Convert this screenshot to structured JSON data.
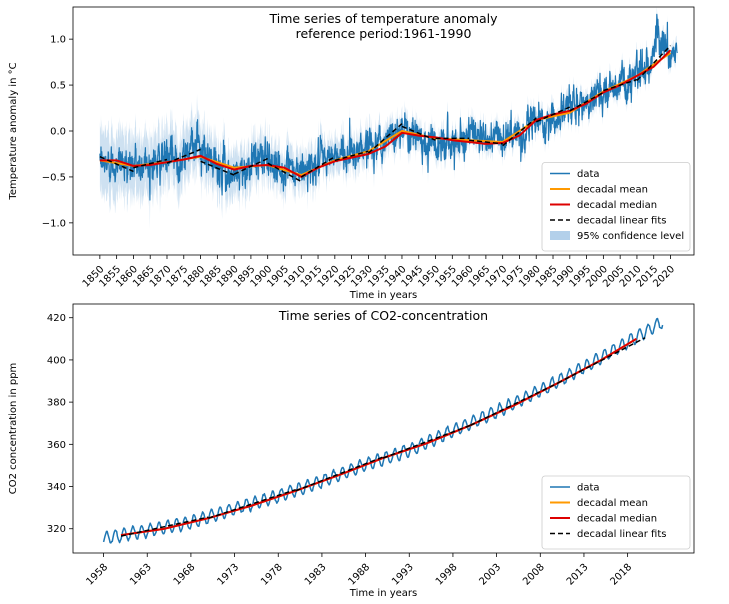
{
  "chart_data": [
    {
      "type": "line",
      "title": "Time series of temperature anomaly",
      "subtitle": "reference period:1961-1990",
      "xlabel": "Time in years",
      "ylabel": "Temperature anomaly in °C",
      "xlim": [
        1842,
        2027
      ],
      "ylim": [
        -1.35,
        1.35
      ],
      "xticks": [
        1850,
        1855,
        1860,
        1865,
        1870,
        1875,
        1880,
        1885,
        1890,
        1895,
        1900,
        1905,
        1910,
        1915,
        1920,
        1925,
        1930,
        1935,
        1940,
        1945,
        1950,
        1955,
        1960,
        1965,
        1970,
        1975,
        1980,
        1985,
        1990,
        1995,
        2000,
        2005,
        2010,
        2015,
        2020
      ],
      "yticks": [
        -1.0,
        -0.5,
        0.0,
        0.5,
        1.0
      ],
      "ytick_labels": [
        "−1.0",
        "−0.5",
        "0.0",
        "0.5",
        "1.0"
      ],
      "legend_position": "bottom-right",
      "legend": [
        "data",
        "decadal mean",
        "decadal median",
        "decadal linear fits",
        "95% confidence level"
      ],
      "series": [
        {
          "name": "data",
          "color": "#1f77b4",
          "style": "monthly series, anchor values",
          "x": [
            1850,
            1855,
            1860,
            1865,
            1870,
            1875,
            1878,
            1880,
            1885,
            1890,
            1895,
            1900,
            1905,
            1910,
            1915,
            1920,
            1925,
            1930,
            1935,
            1940,
            1945,
            1950,
            1955,
            1960,
            1965,
            1970,
            1975,
            1980,
            1985,
            1990,
            1995,
            2000,
            2005,
            2010,
            2015,
            2016,
            2020,
            2022
          ],
          "y": [
            -0.38,
            -0.33,
            -0.38,
            -0.35,
            -0.3,
            -0.3,
            -0.05,
            -0.25,
            -0.4,
            -0.47,
            -0.36,
            -0.27,
            -0.45,
            -0.45,
            -0.33,
            -0.28,
            -0.22,
            -0.16,
            -0.12,
            0.05,
            -0.05,
            -0.15,
            -0.1,
            -0.03,
            -0.1,
            -0.06,
            -0.05,
            0.12,
            0.1,
            0.28,
            0.3,
            0.42,
            0.5,
            0.62,
            0.8,
            1.1,
            0.85,
            0.82
          ]
        },
        {
          "name": "decadal mean",
          "color": "#ff9900",
          "x": [
            1850,
            1860,
            1870,
            1880,
            1890,
            1900,
            1910,
            1920,
            1930,
            1940,
            1950,
            1960,
            1970,
            1980,
            1990,
            2000,
            2010,
            2020
          ],
          "y": [
            -0.32,
            -0.38,
            -0.34,
            -0.28,
            -0.4,
            -0.37,
            -0.48,
            -0.32,
            -0.22,
            0.0,
            -0.08,
            -0.1,
            -0.12,
            0.12,
            0.2,
            0.43,
            0.6,
            0.85
          ]
        },
        {
          "name": "decadal median",
          "color": "#dd0000",
          "x": [
            1850,
            1855,
            1860,
            1865,
            1870,
            1875,
            1880,
            1885,
            1890,
            1895,
            1900,
            1905,
            1910,
            1915,
            1920,
            1925,
            1930,
            1935,
            1940,
            1945,
            1950,
            1955,
            1960,
            1965,
            1970,
            1975,
            1980,
            1985,
            1990,
            1995,
            2000,
            2005,
            2010,
            2015,
            2020
          ],
          "y": [
            -0.32,
            -0.32,
            -0.38,
            -0.37,
            -0.34,
            -0.31,
            -0.27,
            -0.36,
            -0.42,
            -0.38,
            -0.37,
            -0.4,
            -0.5,
            -0.4,
            -0.33,
            -0.29,
            -0.25,
            -0.17,
            -0.02,
            -0.05,
            -0.07,
            -0.1,
            -0.12,
            -0.14,
            -0.13,
            -0.05,
            0.12,
            0.18,
            0.22,
            0.3,
            0.42,
            0.5,
            0.6,
            0.7,
            0.88
          ]
        },
        {
          "name": "decadal linear fits",
          "color": "#000000",
          "style": "dashed",
          "segments": [
            {
              "x": [
                1850,
                1860
              ],
              "y": [
                -0.28,
                -0.44
              ]
            },
            {
              "x": [
                1860,
                1870
              ],
              "y": [
                -0.4,
                -0.31
              ]
            },
            {
              "x": [
                1870,
                1880
              ],
              "y": [
                -0.35,
                -0.2
              ]
            },
            {
              "x": [
                1880,
                1890
              ],
              "y": [
                -0.33,
                -0.48
              ]
            },
            {
              "x": [
                1890,
                1900
              ],
              "y": [
                -0.47,
                -0.3
              ]
            },
            {
              "x": [
                1900,
                1910
              ],
              "y": [
                -0.35,
                -0.55
              ]
            },
            {
              "x": [
                1910,
                1920
              ],
              "y": [
                -0.5,
                -0.28
              ]
            },
            {
              "x": [
                1920,
                1930
              ],
              "y": [
                -0.32,
                -0.22
              ]
            },
            {
              "x": [
                1930,
                1940
              ],
              "y": [
                -0.24,
                0.08
              ]
            },
            {
              "x": [
                1940,
                1950
              ],
              "y": [
                0.05,
                -0.1
              ]
            },
            {
              "x": [
                1950,
                1960
              ],
              "y": [
                -0.08,
                -0.08
              ]
            },
            {
              "x": [
                1960,
                1970
              ],
              "y": [
                -0.1,
                -0.14
              ]
            },
            {
              "x": [
                1970,
                1980
              ],
              "y": [
                -0.16,
                0.14
              ]
            },
            {
              "x": [
                1980,
                1990
              ],
              "y": [
                0.1,
                0.26
              ]
            },
            {
              "x": [
                1990,
                2000
              ],
              "y": [
                0.22,
                0.42
              ]
            },
            {
              "x": [
                2000,
                2010
              ],
              "y": [
                0.44,
                0.56
              ]
            },
            {
              "x": [
                2010,
                2020
              ],
              "y": [
                0.55,
                0.93
              ]
            }
          ]
        },
        {
          "name": "95% confidence level",
          "color": "#a6c8e6",
          "half_width_x": [
            1850,
            1880,
            1900,
            1950,
            2022
          ],
          "half_width": [
            0.35,
            0.28,
            0.22,
            0.12,
            0.08
          ]
        }
      ]
    },
    {
      "type": "line",
      "title": "Time series of CO2-concentration",
      "xlabel": "Time in years",
      "ylabel": "CO2 concentration in ppm",
      "xlim": [
        1954.5,
        2025.6
      ],
      "ylim": [
        308.5,
        426.5
      ],
      "xticks": [
        1958,
        1963,
        1968,
        1973,
        1978,
        1983,
        1988,
        1993,
        1998,
        2003,
        2008,
        2013,
        2018
      ],
      "yticks": [
        320,
        340,
        360,
        380,
        400,
        420
      ],
      "legend_position": "bottom-right",
      "legend": [
        "data",
        "decadal mean",
        "decadal median",
        "decadal linear fits"
      ],
      "series": [
        {
          "name": "data",
          "color": "#1f77b4",
          "style": "monthly series with seasonal cycle, trend anchors",
          "seasonal_amplitude": 3.0,
          "x": [
            1958,
            1963,
            1968,
            1973,
            1978,
            1983,
            1988,
            1993,
            1998,
            2003,
            2008,
            2013,
            2018,
            2022
          ],
          "y": [
            315.5,
            319.0,
            323.0,
            329.5,
            335.5,
            342.5,
            350.5,
            357.0,
            366.5,
            375.5,
            385.5,
            396.5,
            408.5,
            418.0
          ]
        },
        {
          "name": "decadal mean",
          "color": "#ff9900",
          "x": [
            1960,
            1965,
            1970,
            1975,
            1980,
            1985,
            1990,
            1995,
            2000,
            2005,
            2010,
            2015,
            2019
          ],
          "y": [
            317.0,
            320.0,
            325.0,
            331.0,
            338.0,
            345.5,
            353.5,
            360.5,
            369.0,
            378.5,
            389.0,
            400.0,
            410.0
          ]
        },
        {
          "name": "decadal median",
          "color": "#dd0000",
          "x": [
            1960,
            1965,
            1970,
            1975,
            1980,
            1985,
            1990,
            1995,
            2000,
            2005,
            2010,
            2015,
            2019
          ],
          "y": [
            317.0,
            320.0,
            325.0,
            331.0,
            338.0,
            345.5,
            353.5,
            360.5,
            369.0,
            378.5,
            389.0,
            400.0,
            410.0
          ]
        },
        {
          "name": "decadal linear fits",
          "color": "#000000",
          "style": "dashed",
          "segments": [
            {
              "x": [
                1960,
                1970
              ],
              "y": [
                316.5,
                325.5
              ]
            },
            {
              "x": [
                1970,
                1980
              ],
              "y": [
                325.0,
                338.5
              ]
            },
            {
              "x": [
                1980,
                1990
              ],
              "y": [
                338.0,
                354.0
              ]
            },
            {
              "x": [
                1990,
                2000
              ],
              "y": [
                353.5,
                369.0
              ]
            },
            {
              "x": [
                2000,
                2010
              ],
              "y": [
                369.0,
                389.0
              ]
            },
            {
              "x": [
                2010,
                2020
              ],
              "y": [
                389.0,
                410.5
              ]
            }
          ]
        }
      ]
    }
  ]
}
